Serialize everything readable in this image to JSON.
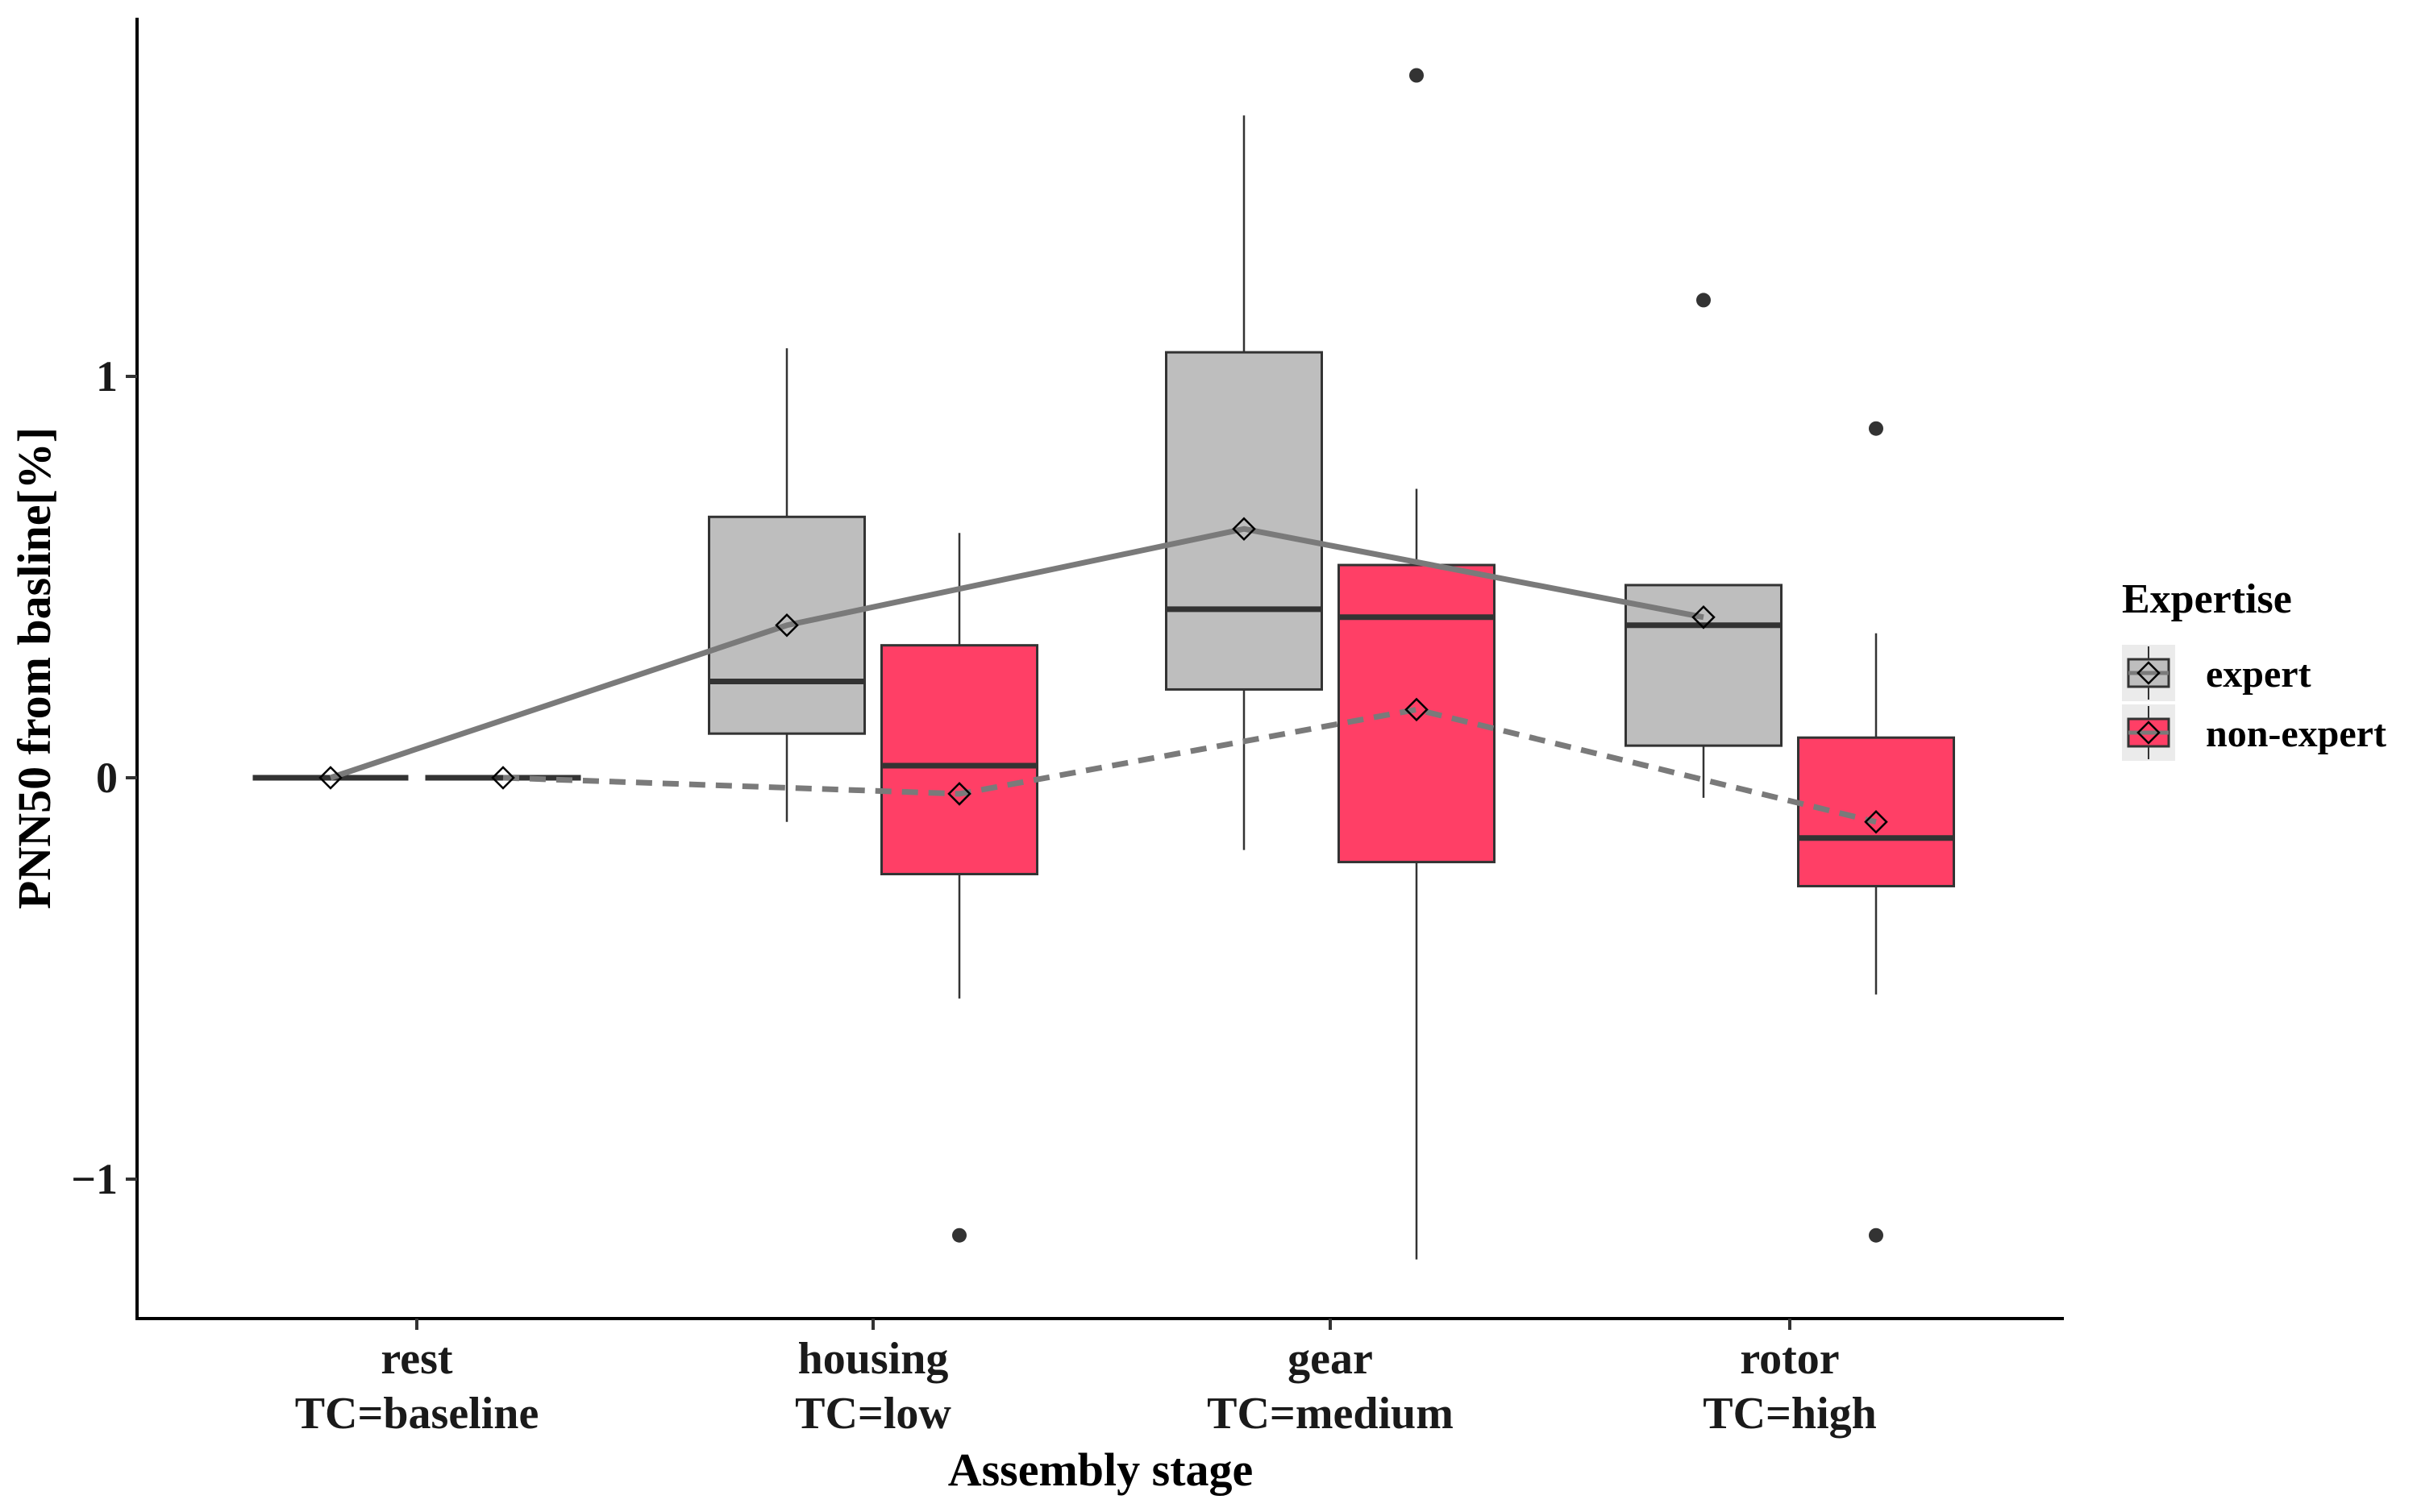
{
  "chart_data": {
    "type": "box",
    "title": "",
    "xlabel": "Assembly stage",
    "ylabel": "PNN50 from basline[%]",
    "categories": [
      {
        "name": "rest",
        "sub": "TC=baseline"
      },
      {
        "name": "housing",
        "sub": "TC=low"
      },
      {
        "name": "gear",
        "sub": "TC=medium"
      },
      {
        "name": "rotor",
        "sub": "TC=high"
      }
    ],
    "yticks": [
      {
        "value": -1,
        "label": "−1"
      },
      {
        "value": 0,
        "label": "0"
      },
      {
        "value": 1,
        "label": "1"
      }
    ],
    "ylim": [
      -1.35,
      1.88
    ],
    "grid": false,
    "legend": {
      "title": "Expertise",
      "position": "right",
      "entries": [
        "expert",
        "non-expert"
      ]
    },
    "series": [
      {
        "name": "expert",
        "color": "#bebebe",
        "mean_line": "solid",
        "boxes": [
          {
            "category": "rest",
            "whisker_low": 0,
            "q1": 0,
            "median": 0,
            "q3": 0,
            "whisker_high": 0,
            "mean": 0,
            "outliers": []
          },
          {
            "category": "housing",
            "whisker_low": -0.11,
            "q1": 0.11,
            "median": 0.24,
            "q3": 0.65,
            "whisker_high": 1.07,
            "mean": 0.38,
            "outliers": []
          },
          {
            "category": "gear",
            "whisker_low": -0.18,
            "q1": 0.22,
            "median": 0.42,
            "q3": 1.06,
            "whisker_high": 1.65,
            "mean": 0.62,
            "outliers": []
          },
          {
            "category": "rotor",
            "whisker_low": -0.05,
            "q1": 0.08,
            "median": 0.38,
            "q3": 0.48,
            "whisker_high": 0.48,
            "mean": 0.4,
            "outliers": [
              1.19
            ]
          }
        ]
      },
      {
        "name": "non-expert",
        "color": "#ff3f66",
        "mean_line": "dashed",
        "boxes": [
          {
            "category": "rest",
            "whisker_low": 0,
            "q1": 0,
            "median": 0,
            "q3": 0,
            "whisker_high": 0,
            "mean": 0,
            "outliers": []
          },
          {
            "category": "housing",
            "whisker_low": -0.55,
            "q1": -0.24,
            "median": 0.03,
            "q3": 0.33,
            "whisker_high": 0.61,
            "mean": -0.04,
            "outliers": [
              -1.14
            ]
          },
          {
            "category": "gear",
            "whisker_low": -1.2,
            "q1": -0.21,
            "median": 0.4,
            "q3": 0.53,
            "whisker_high": 0.72,
            "mean": 0.17,
            "outliers": [
              1.75
            ]
          },
          {
            "category": "rotor",
            "whisker_low": -0.54,
            "q1": -0.27,
            "median": -0.15,
            "q3": 0.1,
            "whisker_high": 0.36,
            "mean": -0.11,
            "outliers": [
              0.87,
              -1.14
            ]
          }
        ]
      }
    ]
  }
}
